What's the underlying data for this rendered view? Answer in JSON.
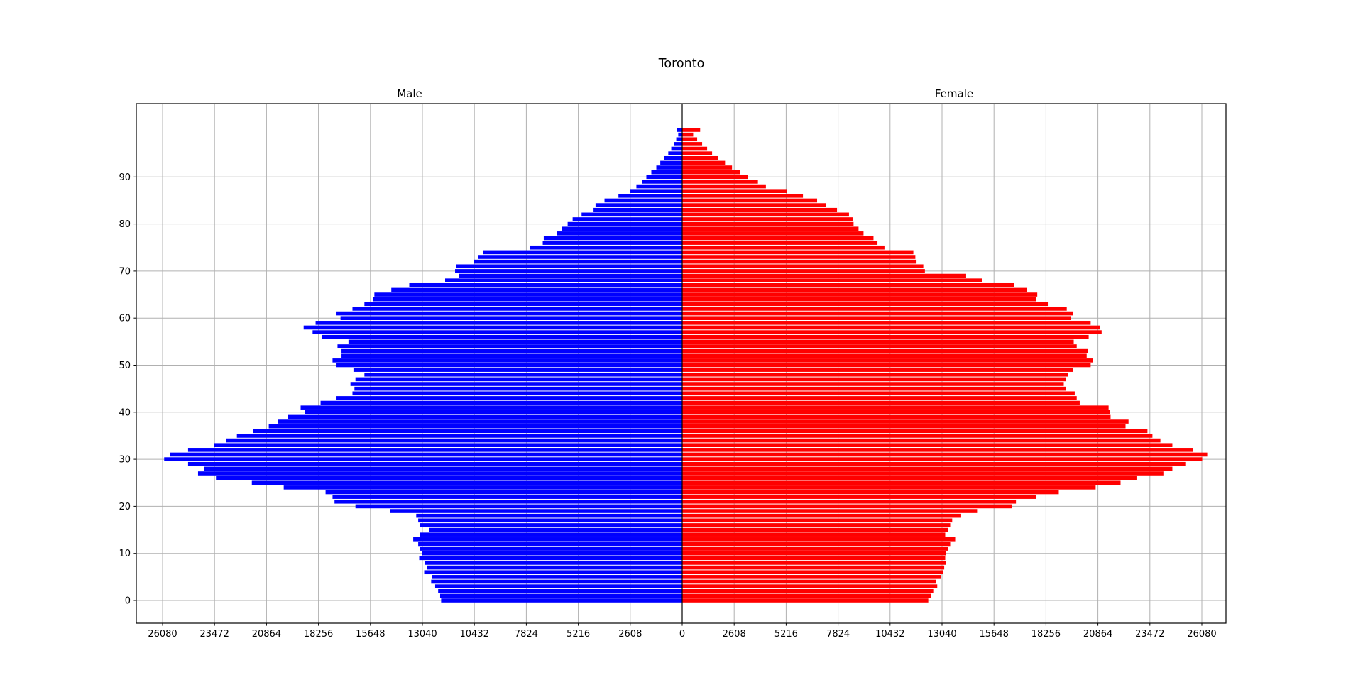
{
  "title": "Toronto",
  "chart_data": {
    "type": "bar",
    "subtype": "population-pyramid",
    "title": "Toronto",
    "left_label": "Male",
    "right_label": "Female",
    "grid": true,
    "grid_color": "#b0b0b0",
    "background": "#ffffff",
    "colors": {
      "male": "#0000ff",
      "female": "#ff0000"
    },
    "x_tick_values": [
      0,
      2608,
      5216,
      7824,
      10432,
      13040,
      15648,
      18256,
      20864,
      23472,
      26080
    ],
    "x_tick_labels_left": [
      "26080",
      "23472",
      "20864",
      "18256",
      "15648",
      "13040",
      "10432",
      "7824",
      "5216",
      "2608"
    ],
    "x_tick_label_center": "0",
    "x_tick_labels_right": [
      "2608",
      "5216",
      "7824",
      "10432",
      "13040",
      "15648",
      "18256",
      "20864",
      "23472",
      "26080"
    ],
    "x_max": 27300,
    "y_tick_labels": [
      "0",
      "10",
      "20",
      "30",
      "40",
      "50",
      "60",
      "70",
      "80",
      "90"
    ],
    "age_start": 0,
    "age_end": 100,
    "note": "values index = age in years, ages 0 through 100",
    "series": [
      {
        "name": "Male",
        "values": [
          12100,
          12150,
          12250,
          12400,
          12600,
          12550,
          12950,
          12800,
          12900,
          13200,
          13050,
          13150,
          13250,
          13500,
          13150,
          12700,
          13150,
          13250,
          13350,
          14650,
          16400,
          17450,
          17550,
          17900,
          20000,
          21600,
          23400,
          24300,
          24000,
          24800,
          26000,
          25700,
          24800,
          23500,
          22900,
          22350,
          21550,
          20750,
          20300,
          19800,
          18950,
          19150,
          18150,
          17350,
          16550,
          16450,
          16650,
          16400,
          15950,
          16500,
          17350,
          17550,
          17100,
          17100,
          17300,
          16750,
          18100,
          18550,
          19000,
          18400,
          17150,
          17350,
          16550,
          15950,
          15500,
          15450,
          14600,
          13700,
          11900,
          11200,
          11400,
          11350,
          10450,
          10250,
          10000,
          7650,
          7000,
          6950,
          6300,
          6050,
          5750,
          5500,
          5050,
          4450,
          4350,
          3900,
          3200,
          2600,
          2300,
          2000,
          1800,
          1550,
          1300,
          1100,
          900,
          700,
          550,
          400,
          300,
          200,
          280
        ]
      },
      {
        "name": "Female",
        "values": [
          12350,
          12500,
          12600,
          12800,
          12750,
          13000,
          13100,
          13150,
          13250,
          13200,
          13250,
          13350,
          13450,
          13700,
          13200,
          13350,
          13450,
          13550,
          14000,
          14800,
          16550,
          16750,
          17750,
          18900,
          20750,
          22000,
          22800,
          24150,
          24600,
          25250,
          26100,
          26350,
          25650,
          24600,
          24000,
          23600,
          23350,
          22250,
          22400,
          21500,
          21450,
          21400,
          19950,
          19800,
          19700,
          19250,
          19150,
          19250,
          19350,
          19600,
          20500,
          20600,
          20300,
          20350,
          19800,
          19650,
          20400,
          21050,
          20950,
          20500,
          19500,
          19600,
          19300,
          18350,
          17750,
          17820,
          17280,
          16670,
          15050,
          14250,
          12180,
          12100,
          11760,
          11700,
          11600,
          10150,
          9800,
          9600,
          9100,
          8850,
          8600,
          8550,
          8370,
          7770,
          7200,
          6770,
          6060,
          5270,
          4200,
          3800,
          3300,
          2900,
          2500,
          2150,
          1800,
          1500,
          1250,
          1000,
          750,
          550,
          900
        ]
      }
    ]
  }
}
